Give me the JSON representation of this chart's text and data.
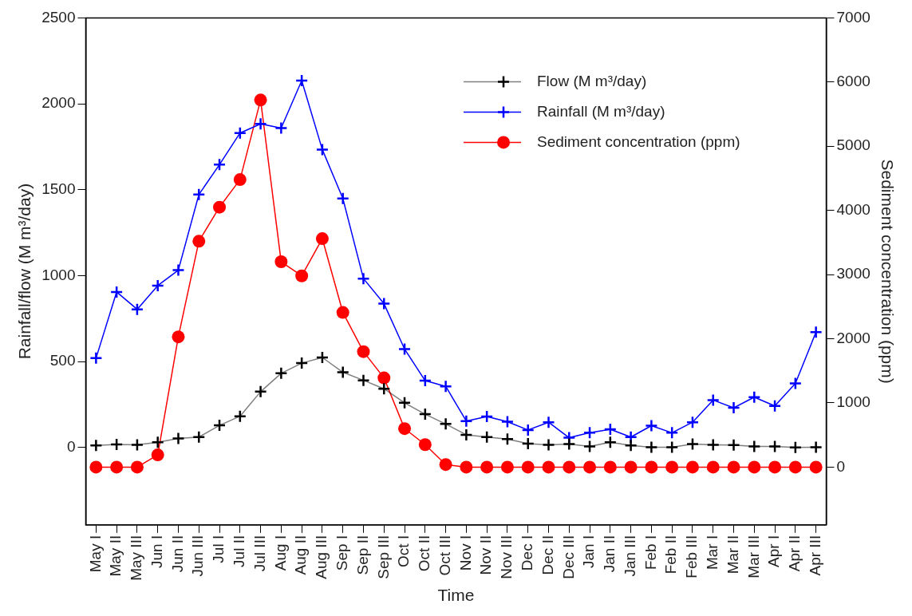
{
  "chart_data": {
    "type": "line",
    "xlabel": "Time",
    "ylabel": "Rainfall/flow (M m³/day)",
    "y2label": "Sediment concentration (ppm)",
    "categories": [
      "May I",
      "May II",
      "May III",
      "Jun I",
      "Jun II",
      "Jun III",
      "Jul I",
      "Jul II",
      "Jul III",
      "Aug I",
      "Aug II",
      "Aug III",
      "Sep I",
      "Sep II",
      "Sep III",
      "Oct I",
      "Oct II",
      "Oct III",
      "Nov I",
      "Nov II",
      "Nov III",
      "Dec I",
      "Dec II",
      "Dec III",
      "Jan I",
      "Jan II",
      "Jan III",
      "Feb I",
      "Feb II",
      "Feb III",
      "Mar I",
      "Mar II",
      "Mar III",
      "Apr I",
      "Apr II",
      "Apr III"
    ],
    "series": [
      {
        "name": "Flow (M m³/day)",
        "color": "#000000",
        "marker": "cross",
        "values": [
          12,
          18,
          16,
          31,
          53,
          61,
          129,
          182,
          325,
          432,
          491,
          524,
          438,
          391,
          342,
          260,
          194,
          137,
          74,
          61,
          49,
          23,
          16,
          20,
          6,
          31,
          12,
          2,
          2,
          20,
          16,
          14,
          6,
          6,
          0,
          2
        ]
      },
      {
        "name": "Rainfall (M m³/day)",
        "color": "#0000ff",
        "marker": "cross",
        "values": [
          520,
          905,
          804,
          942,
          1032,
          1472,
          1646,
          1830,
          1883,
          1859,
          2135,
          1734,
          1449,
          983,
          837,
          573,
          389,
          356,
          154,
          180,
          150,
          102,
          147,
          57,
          86,
          106,
          61,
          127,
          86,
          147,
          276,
          231,
          293,
          242,
          373,
          671
        ]
      },
      {
        "name": "Sediment concentration (ppm)",
        "color": "#ff0000",
        "marker": "circle",
        "axis": "y2",
        "values": [
          0,
          0,
          0,
          190,
          2030,
          3520,
          4050,
          4480,
          5720,
          3200,
          2980,
          3560,
          2410,
          1800,
          1390,
          600,
          350,
          40,
          0,
          0,
          0,
          0,
          0,
          0,
          0,
          0,
          0,
          0,
          0,
          0,
          0,
          0,
          0,
          0,
          0,
          0
        ]
      }
    ],
    "ylim": [
      -450,
      2500
    ],
    "yticks": [
      0,
      500,
      1000,
      1500,
      2000,
      2500
    ],
    "y2lim": [
      -900,
      7000
    ],
    "y2ticks": [
      0,
      1000,
      2000,
      3000,
      4000,
      5000,
      6000,
      7000
    ],
    "legend": "top right",
    "grid": false,
    "line_style": "solid"
  }
}
